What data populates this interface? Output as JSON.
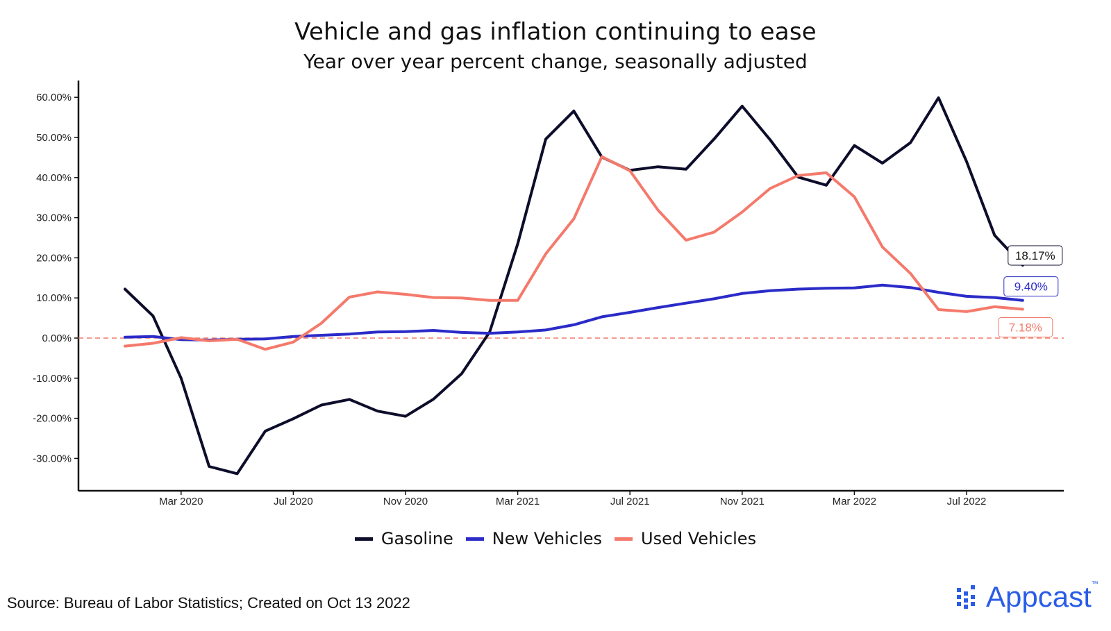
{
  "chart_data": {
    "type": "line",
    "title": "Vehicle and gas inflation continuing to ease",
    "subtitle": "Year over year percent change, seasonally adjusted",
    "x": [
      "2020-01",
      "2020-02",
      "2020-03",
      "2020-04",
      "2020-05",
      "2020-06",
      "2020-07",
      "2020-08",
      "2020-09",
      "2020-10",
      "2020-11",
      "2020-12",
      "2021-01",
      "2021-02",
      "2021-03",
      "2021-04",
      "2021-05",
      "2021-06",
      "2021-07",
      "2021-08",
      "2021-09",
      "2021-10",
      "2021-11",
      "2021-12",
      "2022-01",
      "2022-02",
      "2022-03",
      "2022-04",
      "2022-05",
      "2022-06",
      "2022-07",
      "2022-08",
      "2022-09"
    ],
    "x_ticks": [
      {
        "value": "2020-03",
        "label": "Mar 2020"
      },
      {
        "value": "2020-07",
        "label": "Jul 2020"
      },
      {
        "value": "2020-11",
        "label": "Nov 2020"
      },
      {
        "value": "2021-03",
        "label": "Mar 2021"
      },
      {
        "value": "2021-07",
        "label": "Jul 2021"
      },
      {
        "value": "2021-11",
        "label": "Nov 2021"
      },
      {
        "value": "2022-03",
        "label": "Mar 2022"
      },
      {
        "value": "2022-07",
        "label": "Jul 2022"
      }
    ],
    "y_ticks": [
      {
        "value": 60,
        "label": "60.00%"
      },
      {
        "value": 50,
        "label": "50.00%"
      },
      {
        "value": 40,
        "label": "40.00%"
      },
      {
        "value": 30,
        "label": "30.00%"
      },
      {
        "value": 20,
        "label": "20.00%"
      },
      {
        "value": 10,
        "label": "10.00%"
      },
      {
        "value": 0,
        "label": "0.00%"
      },
      {
        "value": -10,
        "label": "-10.00%"
      },
      {
        "value": -20,
        "label": "-20.00%"
      },
      {
        "value": -30,
        "label": "-30.00%"
      }
    ],
    "ylim": [
      -38,
      65
    ],
    "grid": false,
    "reference_line": {
      "y": 0,
      "style": "dashed",
      "color": "#f07b6b"
    },
    "legend_position": "bottom",
    "series": [
      {
        "name": "Gasoline",
        "color": "#0d0d2b",
        "end_label": "18.17%",
        "values": [
          12.2,
          5.5,
          -10.0,
          -32.0,
          -33.8,
          -23.2,
          -20.1,
          -16.7,
          -15.3,
          -18.2,
          -19.5,
          -15.2,
          -8.9,
          1.5,
          23.5,
          49.6,
          56.6,
          45.1,
          41.8,
          42.7,
          42.1,
          49.6,
          57.8,
          49.4,
          40.1,
          38.1,
          48.0,
          43.6,
          48.7,
          59.9,
          44.0,
          25.6,
          18.17
        ]
      },
      {
        "name": "New Vehicles",
        "color": "#2b2bc8",
        "end_label": "9.40%",
        "values": [
          0.2,
          0.4,
          -0.4,
          -0.5,
          -0.3,
          -0.2,
          0.4,
          0.7,
          1.0,
          1.5,
          1.6,
          1.9,
          1.4,
          1.2,
          1.5,
          2.0,
          3.3,
          5.3,
          6.4,
          7.6,
          8.7,
          9.8,
          11.1,
          11.8,
          12.2,
          12.4,
          12.5,
          13.2,
          12.6,
          11.4,
          10.4,
          10.1,
          9.4
        ]
      },
      {
        "name": "Used Vehicles",
        "color": "#f47a6c",
        "end_label": "7.18%",
        "values": [
          -2.0,
          -1.3,
          0.1,
          -0.7,
          -0.3,
          -2.8,
          -1.0,
          3.7,
          10.2,
          11.5,
          10.9,
          10.1,
          10.0,
          9.4,
          9.4,
          21.0,
          29.7,
          45.2,
          41.7,
          31.9,
          24.4,
          26.4,
          31.4,
          37.3,
          40.5,
          41.2,
          35.2,
          22.7,
          16.1,
          7.1,
          6.6,
          7.8,
          7.18
        ]
      }
    ]
  },
  "footer": {
    "source": "Source: Bureau of Labor Statistics; Created on Oct 13 2022",
    "brand": "Appcast",
    "brand_tm": "™"
  }
}
